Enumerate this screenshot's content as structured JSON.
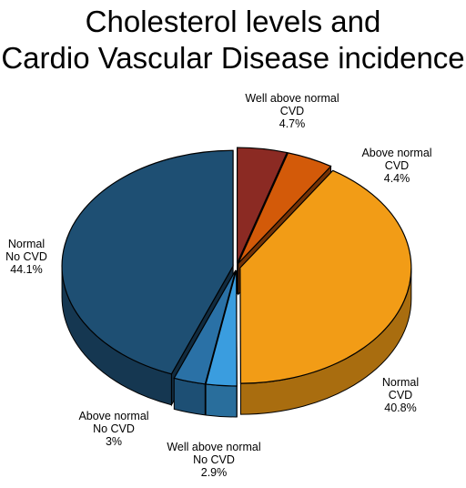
{
  "chart_data": {
    "type": "pie",
    "title_lines": [
      "Cholesterol levels and",
      "Cardio Vascular Disease incidence"
    ],
    "slices": [
      {
        "line1": "Well above normal",
        "line2": "CVD",
        "value": 4.7,
        "percent_label": "4.7%",
        "color": "#8b2a23"
      },
      {
        "line1": "Above normal",
        "line2": "CVD",
        "value": 4.4,
        "percent_label": "4.4%",
        "color": "#d35a09"
      },
      {
        "line1": "Normal",
        "line2": "CVD",
        "value": 40.8,
        "percent_label": "40.8%",
        "color": "#f29c16"
      },
      {
        "line1": "Well above normal",
        "line2": "No CVD",
        "value": 2.9,
        "percent_label": "2.9%",
        "color": "#3a9ddf"
      },
      {
        "line1": "Above normal",
        "line2": "No CVD",
        "value": 3,
        "percent_label": "3%",
        "color": "#2a71a6"
      },
      {
        "line1": "Normal",
        "line2": "No CVD",
        "value": 44.1,
        "percent_label": "44.1%",
        "color": "#1e4f73"
      }
    ],
    "exploded": true,
    "three_d": true
  }
}
